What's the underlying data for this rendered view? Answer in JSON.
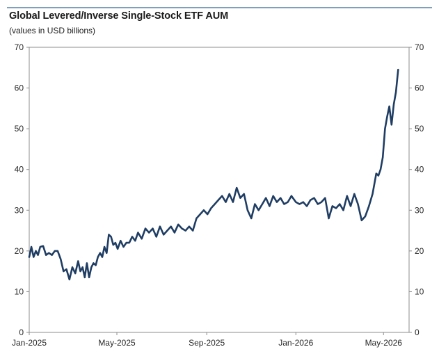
{
  "chart_data": {
    "type": "line",
    "title": "Global Levered/Inverse Single-Stock ETF AUM",
    "subtitle": "(values in USD billions)",
    "xlabel": "",
    "ylabel": "",
    "x_tick_labels": [
      "Jan-2025",
      "May-2025",
      "Sep-2025",
      "Jan-2026",
      "May-2026"
    ],
    "y_tick_labels": [
      "0",
      "10",
      "20",
      "30",
      "40",
      "50",
      "60",
      "70"
    ],
    "ylim": [
      0,
      70
    ],
    "grid": false,
    "series_color": "#1f3d63",
    "series": [
      {
        "x": [
          "2025-01-01",
          "2025-01-04",
          "2025-01-07",
          "2025-01-10",
          "2025-01-13",
          "2025-01-16",
          "2025-01-20",
          "2025-01-24",
          "2025-01-28",
          "2025-02-01",
          "2025-02-05",
          "2025-02-09",
          "2025-02-13",
          "2025-02-17",
          "2025-02-21",
          "2025-02-25",
          "2025-03-01",
          "2025-03-05",
          "2025-03-09",
          "2025-03-12",
          "2025-03-15",
          "2025-03-18",
          "2025-03-21",
          "2025-03-24",
          "2025-03-27",
          "2025-03-30",
          "2025-04-02",
          "2025-04-05",
          "2025-04-08",
          "2025-04-11",
          "2025-04-14",
          "2025-04-17",
          "2025-04-20",
          "2025-04-23",
          "2025-04-26",
          "2025-04-29",
          "2025-05-02",
          "2025-05-06",
          "2025-05-10",
          "2025-05-14",
          "2025-05-18",
          "2025-05-22",
          "2025-05-26",
          "2025-05-30",
          "2025-06-04",
          "2025-06-09",
          "2025-06-14",
          "2025-06-19",
          "2025-06-24",
          "2025-06-29",
          "2025-07-04",
          "2025-07-09",
          "2025-07-14",
          "2025-07-19",
          "2025-07-24",
          "2025-07-29",
          "2025-08-03",
          "2025-08-08",
          "2025-08-13",
          "2025-08-18",
          "2025-08-23",
          "2025-08-28",
          "2025-09-02",
          "2025-09-07",
          "2025-09-12",
          "2025-09-17",
          "2025-09-22",
          "2025-09-27",
          "2025-10-02",
          "2025-10-07",
          "2025-10-12",
          "2025-10-17",
          "2025-10-22",
          "2025-10-27",
          "2025-11-01",
          "2025-11-06",
          "2025-11-11",
          "2025-11-16",
          "2025-11-21",
          "2025-11-26",
          "2025-12-01",
          "2025-12-06",
          "2025-12-11",
          "2025-12-16",
          "2025-12-21",
          "2025-12-26",
          "2026-01-01",
          "2026-01-06",
          "2026-01-11",
          "2026-01-16",
          "2026-01-21",
          "2026-01-26",
          "2026-01-31",
          "2026-02-05",
          "2026-02-10",
          "2026-02-15",
          "2026-02-20",
          "2026-02-25",
          "2026-03-02",
          "2026-03-07",
          "2026-03-12",
          "2026-03-17",
          "2026-03-22",
          "2026-03-27",
          "2026-04-01",
          "2026-04-06",
          "2026-04-11",
          "2026-04-16",
          "2026-04-21",
          "2026-04-24",
          "2026-04-27",
          "2026-04-30",
          "2026-05-03",
          "2026-05-06",
          "2026-05-09",
          "2026-05-12",
          "2026-05-15",
          "2026-05-18",
          "2026-05-21"
        ],
        "values": [
          18.5,
          21.0,
          18.5,
          20.0,
          19.0,
          21.0,
          21.2,
          19.0,
          19.5,
          19.0,
          20.0,
          20.0,
          18.0,
          15.0,
          15.5,
          13.0,
          16.0,
          14.5,
          17.5,
          15.0,
          16.0,
          13.5,
          17.0,
          13.5,
          16.0,
          17.0,
          16.5,
          18.5,
          19.5,
          18.5,
          21.0,
          19.5,
          24.0,
          23.5,
          21.5,
          22.0,
          20.5,
          22.5,
          21.0,
          22.0,
          22.0,
          23.5,
          22.5,
          24.5,
          23.0,
          25.5,
          24.5,
          25.5,
          23.5,
          26.0,
          24.0,
          25.0,
          26.0,
          24.5,
          26.5,
          25.5,
          25.0,
          26.0,
          25.0,
          28.0,
          29.0,
          30.0,
          29.0,
          30.5,
          31.5,
          32.5,
          33.5,
          32.0,
          34.0,
          32.0,
          35.5,
          33.0,
          34.0,
          30.0,
          28.0,
          31.5,
          30.0,
          31.5,
          33.0,
          31.0,
          33.5,
          32.0,
          33.0,
          31.5,
          32.0,
          33.5,
          32.0,
          31.5,
          32.0,
          31.0,
          32.5,
          33.0,
          31.5,
          32.0,
          33.0,
          28.0,
          31.0,
          30.5,
          31.5,
          30.0,
          33.5,
          31.0,
          34.0,
          31.5,
          27.5,
          28.5,
          31.0,
          34.0,
          39.0,
          38.5,
          40.0,
          43.0,
          50.0,
          53.0,
          55.5,
          51.0,
          56.0,
          59.0,
          64.5
        ]
      }
    ]
  }
}
